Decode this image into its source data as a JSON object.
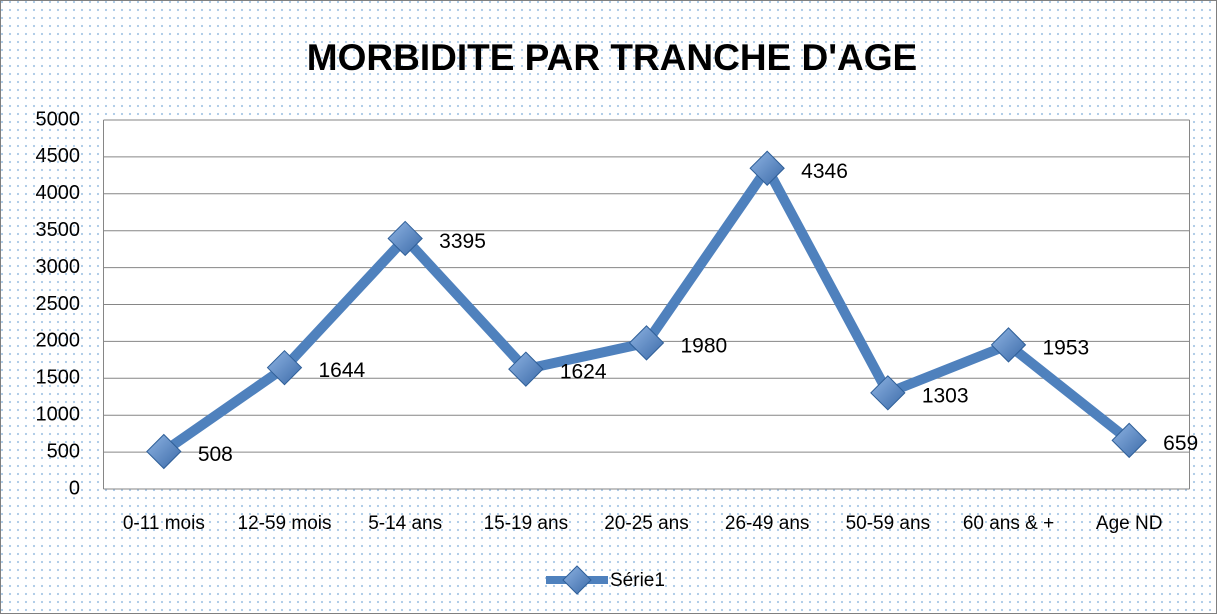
{
  "chart_data": {
    "type": "line",
    "title": "MORBIDITE PAR TRANCHE D'AGE",
    "categories": [
      "0-11 mois",
      "12-59 mois",
      "5-14 ans",
      "15-19 ans",
      "20-25 ans",
      "26-49 ans",
      "50-59 ans",
      "60 ans & +",
      "Age ND"
    ],
    "series": [
      {
        "name": "Série1",
        "color": "#4f81bd",
        "values": [
          508,
          1644,
          3395,
          1624,
          1980,
          4346,
          1303,
          1953,
          659
        ]
      }
    ],
    "ylim": [
      0,
      5000
    ],
    "yticks": [
      0,
      500,
      1000,
      1500,
      2000,
      2500,
      3000,
      3500,
      4000,
      4500,
      5000
    ],
    "grid": true,
    "legend": "bottom"
  }
}
